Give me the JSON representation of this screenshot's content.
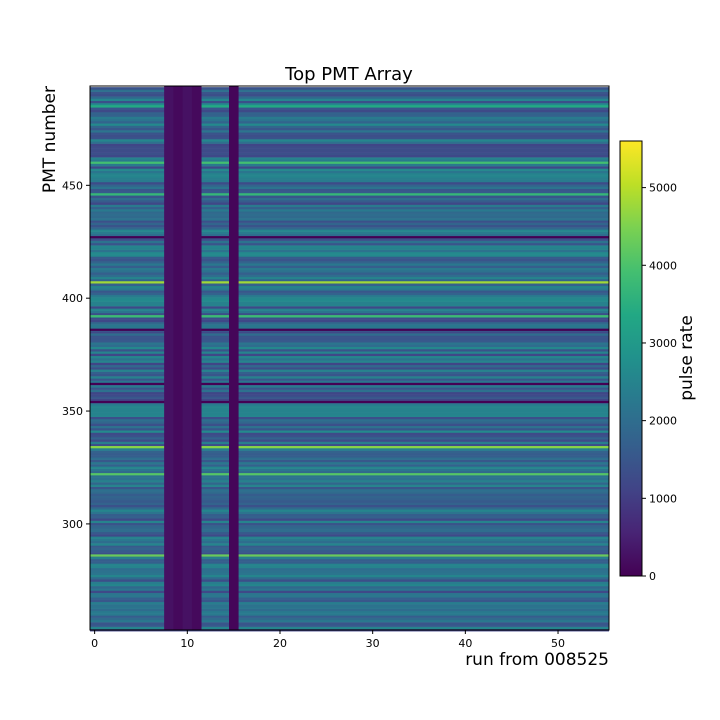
{
  "chart_data": {
    "type": "heatmap",
    "title": "Top PMT Array",
    "xlabel": "run from 008525",
    "ylabel": "PMT number",
    "xlim": [
      -0.5,
      55.5
    ],
    "ylim": [
      253,
      494
    ],
    "x_ticks": [
      0,
      10,
      20,
      30,
      40,
      50
    ],
    "y_ticks": [
      300,
      350,
      400,
      450
    ],
    "colorbar": {
      "label": "pulse rate",
      "range": [
        0,
        5600
      ],
      "ticks": [
        0,
        1000,
        2000,
        3000,
        4000,
        5000
      ],
      "colormap": "viridis"
    },
    "pmt_range": [
      253,
      493
    ],
    "runs": 56,
    "typical_pulse_rate": 1900,
    "low_rate_runs": [
      {
        "runs": [
          8,
          9,
          10,
          11
        ],
        "pulse_rate": 250
      },
      {
        "runs": [
          15
        ],
        "pulse_rate": 80
      }
    ],
    "dead_pmts": [
      354,
      362,
      386,
      427
    ],
    "hot_pmts": [
      {
        "pmt": 286,
        "pulse_rate": 4300
      },
      {
        "pmt": 322,
        "pulse_rate": 4100
      },
      {
        "pmt": 334,
        "pulse_rate": 4600
      },
      {
        "pmt": 392,
        "pulse_rate": 3800
      },
      {
        "pmt": 407,
        "pulse_rate": 4800
      },
      {
        "pmt": 446,
        "pulse_rate": 3700
      },
      {
        "pmt": 460,
        "pulse_rate": 3900
      },
      {
        "pmt": 485,
        "pulse_rate": 3400
      }
    ]
  }
}
